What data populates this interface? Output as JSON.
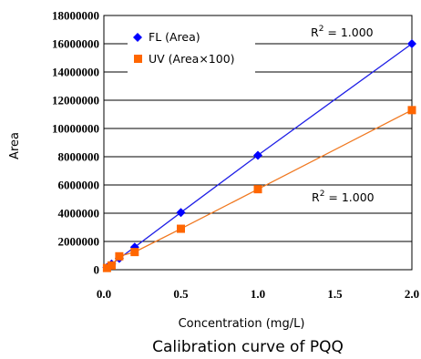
{
  "chart_data": {
    "type": "line",
    "title": "",
    "caption": "Calibration curve of PQQ",
    "xlabel": "Concentration (mg/L)",
    "ylabel": "Area",
    "xlim": [
      0,
      2.0
    ],
    "ylim": [
      0,
      18000000
    ],
    "xticks": [
      0.0,
      0.5,
      1.0,
      1.5,
      2.0
    ],
    "xtick_labels": [
      "0.0",
      "0.5",
      "1.0",
      "1.5",
      "2.0"
    ],
    "yticks": [
      0,
      2000000,
      4000000,
      6000000,
      8000000,
      10000000,
      12000000,
      14000000,
      16000000,
      18000000
    ],
    "ytick_labels": [
      "0",
      "2000000",
      "4000000",
      "6000000",
      "8000000",
      "10000000",
      "12000000",
      "14000000",
      "16000000",
      "18000000"
    ],
    "grid": "horizontal",
    "legend_position": "top-left",
    "series": [
      {
        "name": "FL (Area)",
        "marker": "diamond",
        "color": "#0000ff",
        "line_color": "#1f1fe6",
        "x": [
          0.02,
          0.05,
          0.1,
          0.2,
          0.5,
          1.0,
          2.0
        ],
        "y": [
          160000,
          400000,
          800000,
          1600000,
          4050000,
          8100000,
          16000000
        ]
      },
      {
        "name": "UV (Area×100)",
        "marker": "square",
        "color": "#ff6600",
        "line_color": "#f07820",
        "x": [
          0.02,
          0.05,
          0.1,
          0.2,
          0.5,
          1.0,
          2.0
        ],
        "y": [
          120000,
          300000,
          950000,
          1250000,
          2900000,
          5700000,
          11300000
        ]
      }
    ],
    "annotations": [
      {
        "base": "R",
        "sup": "2",
        "rest": " = 1.000",
        "series": "FL (Area)"
      },
      {
        "base": "R",
        "sup": "2",
        "rest": " = 1.000",
        "series": "UV (Area×100)"
      }
    ]
  }
}
